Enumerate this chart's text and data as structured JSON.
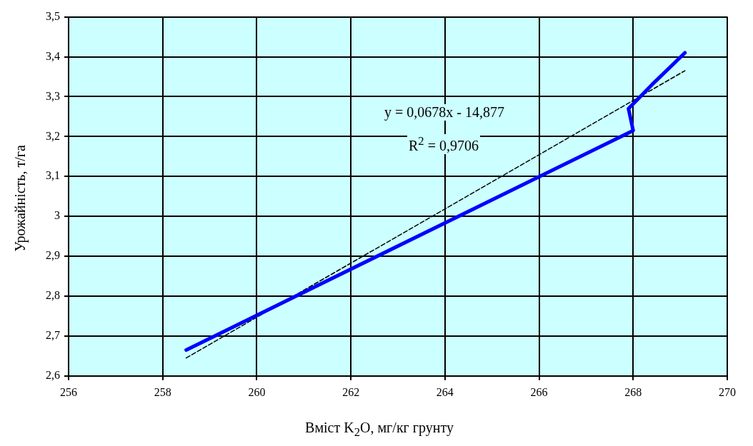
{
  "chart_data": {
    "type": "line",
    "xlabel": "Вміст K$_{2}$O, мг/кг грунту",
    "ylabel": "Урожайність, т/га",
    "annotations": [
      "y = 0,0678x - 14,877",
      "R$^{2}$ = 0,9706"
    ],
    "xlim": [
      256,
      270
    ],
    "xticks": [
      256,
      258,
      260,
      262,
      264,
      266,
      268,
      270
    ],
    "ylim": [
      2.6,
      3.5
    ],
    "yticks": [
      {
        "value": 2.6,
        "label": "2,6"
      },
      {
        "value": 2.7,
        "label": "2,7"
      },
      {
        "value": 2.8,
        "label": "2,8"
      },
      {
        "value": 2.9,
        "label": "2,9"
      },
      3,
      {
        "value": 3.1,
        "label": "3,1"
      },
      {
        "value": 3.2,
        "label": "3,2"
      },
      {
        "value": 3.3,
        "label": "3,3"
      },
      {
        "value": 3.4,
        "label": "3,4"
      },
      {
        "value": 3.5,
        "label": "3,5"
      }
    ],
    "grid": true,
    "legend": false,
    "marker": "none",
    "series": [
      {
        "color": "#0000ff",
        "line_style": "solid",
        "x": [
          258.5,
          268.0,
          267.9,
          268.4,
          269.1
        ],
        "values": [
          2.665,
          3.215,
          3.27,
          3.33,
          3.41
        ]
      },
      {
        "color": "#000000",
        "line_style": "dashed",
        "x": [
          258.5,
          269.1
        ],
        "values": [
          2.645,
          3.365
        ]
      }
    ]
  }
}
